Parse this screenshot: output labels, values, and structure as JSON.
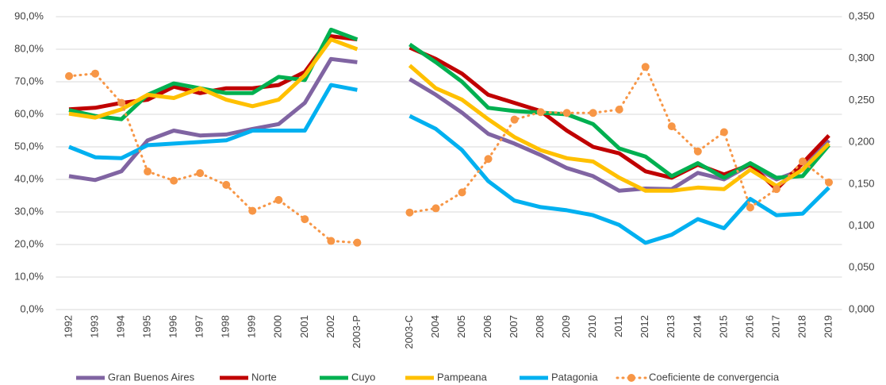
{
  "chart_data": {
    "type": "line",
    "categories": [
      "1992",
      "1993",
      "1994",
      "1995",
      "1996",
      "1997",
      "1998",
      "1999",
      "2000",
      "2001",
      "2002",
      "2003-P",
      null,
      "2003-C",
      "2004",
      "2005",
      "2006",
      "2007",
      "2008",
      "2009",
      "2010",
      "2011",
      "2012",
      "2013",
      "2014",
      "2015",
      "2016",
      "2017",
      "2018",
      "2019"
    ],
    "series": [
      {
        "name": "Gran Buenos Aires",
        "color": "#8064a2",
        "values": [
          41,
          39.8,
          42.5,
          52,
          55,
          53.5,
          53.8,
          55.5,
          57,
          63.5,
          77,
          76,
          null,
          70.8,
          66,
          60.5,
          54,
          51,
          47.5,
          43.5,
          41,
          36.5,
          37.2,
          37,
          42,
          40,
          44.5,
          40,
          43,
          52
        ]
      },
      {
        "name": "Norte",
        "color": "#c00000",
        "values": [
          61.5,
          62,
          63.5,
          64.5,
          68.5,
          66.5,
          68,
          68,
          69,
          73,
          84,
          83,
          null,
          80.5,
          77,
          72.5,
          66,
          63.5,
          61,
          55,
          50,
          48,
          42.5,
          40.5,
          44.5,
          41.5,
          44.5,
          37,
          45,
          53.5
        ]
      },
      {
        "name": "Cuyo",
        "color": "#00b050",
        "values": [
          61.3,
          59.5,
          58.5,
          66,
          69.5,
          68,
          66.5,
          66.5,
          71.5,
          70.5,
          86,
          83,
          null,
          81.5,
          76,
          70,
          62,
          61,
          60.5,
          60,
          57,
          49.5,
          47,
          41,
          45,
          40.5,
          45,
          40.5,
          41,
          50.5
        ]
      },
      {
        "name": "Pampeana",
        "color": "#ffc000",
        "values": [
          60.2,
          59,
          61.5,
          66,
          65,
          68,
          64.5,
          62.5,
          64.5,
          72,
          83,
          80,
          null,
          75,
          68,
          64.5,
          58.5,
          53,
          49,
          46.5,
          45.5,
          40.5,
          36.5,
          36.5,
          37.5,
          37,
          43,
          38,
          43,
          51
        ]
      },
      {
        "name": "Patagonia",
        "color": "#00b0f0",
        "values": [
          50,
          46.8,
          46.5,
          50.5,
          51,
          51.5,
          52,
          55,
          55,
          55,
          69,
          67.5,
          null,
          59.5,
          55.5,
          49,
          39.5,
          33.5,
          31.5,
          30.5,
          29,
          26,
          20.5,
          23,
          27.8,
          25,
          34,
          29,
          29.5,
          37.5
        ]
      },
      {
        "name": "Coeficiente de convergencia",
        "color": "#f79646",
        "axis": "y2",
        "dashed": true,
        "markers": true,
        "values": [
          0.279,
          0.282,
          0.247,
          0.165,
          0.154,
          0.163,
          0.149,
          0.118,
          0.131,
          0.108,
          0.082,
          0.08,
          null,
          0.116,
          0.121,
          0.14,
          0.18,
          0.227,
          0.236,
          0.235,
          0.235,
          0.239,
          0.29,
          0.219,
          0.189,
          0.212,
          0.122,
          0.144,
          0.177,
          0.152
        ]
      }
    ],
    "ylim": [
      0,
      90
    ],
    "yticks": [
      {
        "value": 0,
        "label": "0,0%"
      },
      {
        "value": 10,
        "label": "10,0%"
      },
      {
        "value": 20,
        "label": "20,0%"
      },
      {
        "value": 30,
        "label": "30,0%"
      },
      {
        "value": 40,
        "label": "40,0%"
      },
      {
        "value": 50,
        "label": "50,0%"
      },
      {
        "value": 60,
        "label": "60,0%"
      },
      {
        "value": 70,
        "label": "70,0%"
      },
      {
        "value": 80,
        "label": "80,0%"
      },
      {
        "value": 90,
        "label": "90,0%"
      }
    ],
    "y2lim": [
      0,
      0.35
    ],
    "y2ticks": [
      {
        "value": 0,
        "label": "0,000"
      },
      {
        "value": 0.05,
        "label": "0,050"
      },
      {
        "value": 0.1,
        "label": "0,100"
      },
      {
        "value": 0.15,
        "label": "0,150"
      },
      {
        "value": 0.2,
        "label": "0,200"
      },
      {
        "value": 0.25,
        "label": "0,250"
      },
      {
        "value": 0.3,
        "label": "0,300"
      },
      {
        "value": 0.35,
        "label": "0,350"
      }
    ],
    "grid": true,
    "legend": "bottom"
  }
}
